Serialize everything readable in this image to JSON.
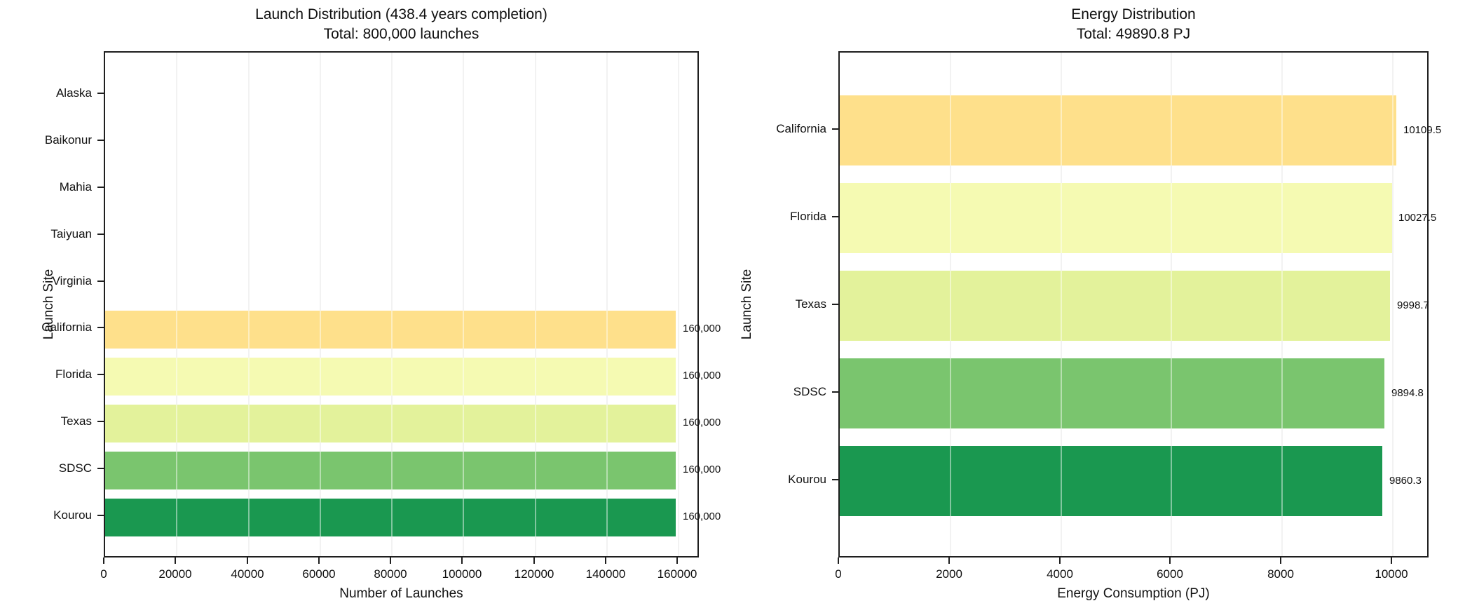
{
  "figure": {
    "background_color": "#ffffff",
    "spine_color": "#1f1f1f",
    "gridline_color": "#e8e8e8",
    "text_color": "#111111"
  },
  "chart_data": [
    {
      "type": "bar",
      "orientation": "horizontal",
      "title": "Launch Distribution (438.4 years completion)",
      "subtitle": "Total: 800,000 launches",
      "xlabel": "Number of Launches",
      "ylabel": "Launch Site",
      "categories": [
        "Alaska",
        "Baikonur",
        "Mahia",
        "Taiyuan",
        "Virginia",
        "California",
        "Florida",
        "Texas",
        "SDSC",
        "Kourou"
      ],
      "values": [
        0,
        0,
        0,
        0,
        0,
        160000,
        160000,
        160000,
        160000,
        160000
      ],
      "value_labels": [
        "",
        "",
        "",
        "",
        "",
        "160,000",
        "160,000",
        "160,000",
        "160,000",
        "160,000"
      ],
      "bar_colors": [
        "",
        "",
        "",
        "",
        "",
        "#fee08b",
        "#f5fab2",
        "#e3f29b",
        "#7ac56e",
        "#1a9850"
      ],
      "xlim": [
        0,
        166000
      ],
      "xticks": [
        0,
        20000,
        40000,
        60000,
        80000,
        100000,
        120000,
        140000,
        160000
      ],
      "xtick_labels": [
        "0",
        "20000",
        "40000",
        "60000",
        "80000",
        "100000",
        "120000",
        "140000",
        "160000"
      ],
      "grid": "vertical",
      "legend": "none"
    },
    {
      "type": "bar",
      "orientation": "horizontal",
      "title": "Energy Distribution",
      "subtitle": "Total: 49890.8 PJ",
      "xlabel": "Energy Consumption (PJ)",
      "ylabel": "Launch Site",
      "categories": [
        "California",
        "Florida",
        "Texas",
        "SDSC",
        "Kourou"
      ],
      "values": [
        10109.5,
        10027.5,
        9998.7,
        9894.8,
        9860.3
      ],
      "value_labels": [
        "10109.5",
        "10027.5",
        "9998.7",
        "9894.8",
        "9860.3"
      ],
      "bar_colors": [
        "#fee08b",
        "#f5fab2",
        "#e3f29b",
        "#7ac56e",
        "#1a9850"
      ],
      "xlim": [
        0,
        10670
      ],
      "xticks": [
        0,
        2000,
        4000,
        6000,
        8000,
        10000
      ],
      "xtick_labels": [
        "0",
        "2000",
        "4000",
        "6000",
        "8000",
        "10000"
      ],
      "grid": "vertical",
      "legend": "none"
    }
  ]
}
